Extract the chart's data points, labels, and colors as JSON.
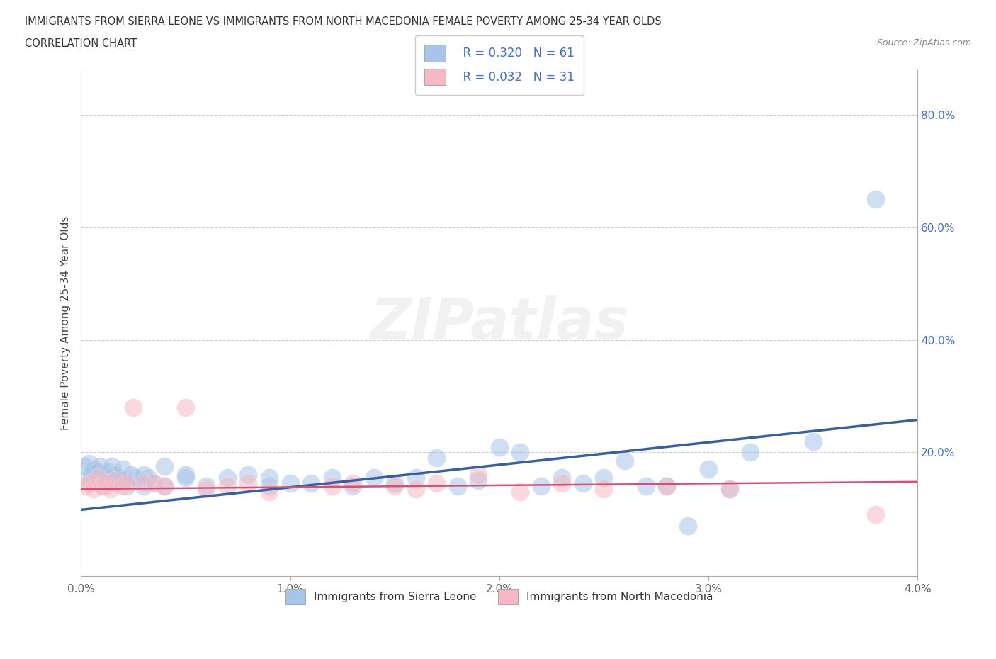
{
  "title_line1": "IMMIGRANTS FROM SIERRA LEONE VS IMMIGRANTS FROM NORTH MACEDONIA FEMALE POVERTY AMONG 25-34 YEAR OLDS",
  "title_line2": "CORRELATION CHART",
  "source_text": "Source: ZipAtlas.com",
  "ylabel": "Female Poverty Among 25-34 Year Olds",
  "xlim": [
    0.0,
    0.04
  ],
  "ylim": [
    -0.02,
    0.88
  ],
  "xtick_labels": [
    "0.0%",
    "1.0%",
    "2.0%",
    "3.0%",
    "4.0%"
  ],
  "xtick_values": [
    0.0,
    0.01,
    0.02,
    0.03,
    0.04
  ],
  "ytick_labels": [
    "20.0%",
    "40.0%",
    "60.0%",
    "80.0%"
  ],
  "ytick_values": [
    0.2,
    0.4,
    0.6,
    0.8
  ],
  "watermark": "ZIPatlas",
  "legend_blue_label": "Immigrants from Sierra Leone",
  "legend_pink_label": "Immigrants from North Macedonia",
  "r_blue": "R = 0.320",
  "n_blue": "N = 61",
  "r_pink": "R = 0.032",
  "n_pink": "N = 31",
  "blue_color": "#a8c4e8",
  "pink_color": "#f5b8c4",
  "blue_line_color": "#3a5fa0",
  "pink_line_color": "#d94f72",
  "blue_scatter_x": [
    0.00015,
    0.0003,
    0.0004,
    0.0005,
    0.0006,
    0.0007,
    0.0008,
    0.0009,
    0.001,
    0.001,
    0.0011,
    0.0012,
    0.0013,
    0.0014,
    0.0015,
    0.0016,
    0.0017,
    0.0018,
    0.002,
    0.002,
    0.0022,
    0.0024,
    0.0026,
    0.003,
    0.003,
    0.0032,
    0.0034,
    0.004,
    0.004,
    0.005,
    0.005,
    0.006,
    0.007,
    0.008,
    0.009,
    0.009,
    0.01,
    0.011,
    0.012,
    0.013,
    0.014,
    0.015,
    0.016,
    0.017,
    0.018,
    0.019,
    0.02,
    0.021,
    0.022,
    0.023,
    0.024,
    0.025,
    0.026,
    0.027,
    0.028,
    0.029,
    0.03,
    0.031,
    0.032,
    0.035,
    0.038
  ],
  "blue_scatter_y": [
    0.175,
    0.155,
    0.18,
    0.16,
    0.17,
    0.15,
    0.165,
    0.175,
    0.16,
    0.145,
    0.14,
    0.155,
    0.165,
    0.15,
    0.175,
    0.16,
    0.145,
    0.155,
    0.17,
    0.15,
    0.14,
    0.16,
    0.155,
    0.14,
    0.16,
    0.155,
    0.145,
    0.175,
    0.14,
    0.16,
    0.155,
    0.14,
    0.155,
    0.16,
    0.14,
    0.155,
    0.145,
    0.145,
    0.155,
    0.14,
    0.155,
    0.145,
    0.155,
    0.19,
    0.14,
    0.15,
    0.21,
    0.2,
    0.14,
    0.155,
    0.145,
    0.155,
    0.185,
    0.14,
    0.14,
    0.07,
    0.17,
    0.135,
    0.2,
    0.22,
    0.65
  ],
  "pink_scatter_x": [
    0.0002,
    0.0004,
    0.0006,
    0.0008,
    0.001,
    0.0012,
    0.0014,
    0.0016,
    0.002,
    0.0022,
    0.0025,
    0.003,
    0.0035,
    0.004,
    0.005,
    0.006,
    0.007,
    0.008,
    0.009,
    0.012,
    0.013,
    0.015,
    0.016,
    0.017,
    0.019,
    0.021,
    0.023,
    0.025,
    0.028,
    0.031,
    0.038
  ],
  "pink_scatter_y": [
    0.14,
    0.145,
    0.135,
    0.155,
    0.14,
    0.145,
    0.135,
    0.15,
    0.14,
    0.145,
    0.28,
    0.145,
    0.145,
    0.14,
    0.28,
    0.135,
    0.14,
    0.145,
    0.13,
    0.14,
    0.145,
    0.14,
    0.135,
    0.145,
    0.16,
    0.13,
    0.145,
    0.135,
    0.14,
    0.135,
    0.09
  ],
  "blue_line_x": [
    0.0,
    0.04
  ],
  "blue_line_y": [
    0.098,
    0.258
  ],
  "pink_line_x": [
    0.0,
    0.04
  ],
  "pink_line_y": [
    0.135,
    0.148
  ]
}
